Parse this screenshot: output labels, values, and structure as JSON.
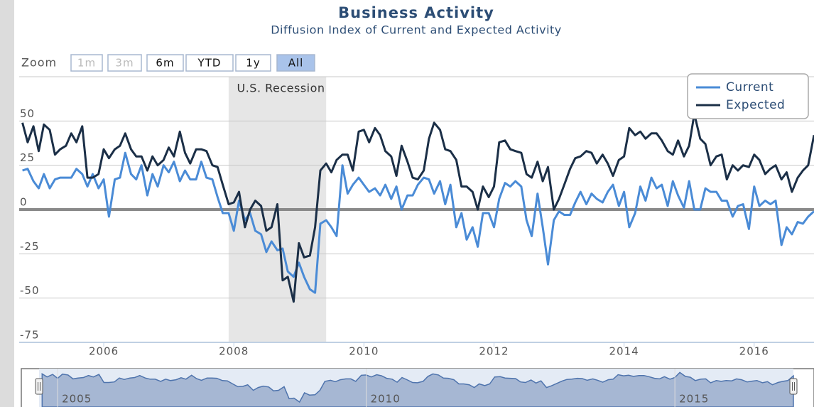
{
  "chart_data": {
    "type": "line",
    "title": "Business Activity",
    "subtitle": "Diffusion Index of Current and Expected Activity",
    "zoom_label": "Zoom",
    "zoom_buttons": [
      "1m",
      "3m",
      "6m",
      "YTD",
      "1y",
      "All"
    ],
    "zoom_disabled": [
      "1m",
      "3m"
    ],
    "zoom_selected": "All",
    "recession": {
      "label": "U.S. Recession",
      "xrange": [
        2007.92,
        2009.42
      ]
    },
    "legend": "top-right",
    "grid": true,
    "xlim": [
      2004.7,
      2016.92
    ],
    "xticks": [
      2006,
      2008,
      2010,
      2012,
      2014,
      2016
    ],
    "ylim": [
      -75,
      75
    ],
    "yticks": [
      -75,
      -50,
      -25,
      0,
      25,
      50
    ],
    "navigator_xticks": [
      2005,
      2010,
      2015
    ],
    "x": [
      2004.75,
      2004.83,
      2004.92,
      2005.0,
      2005.08,
      2005.17,
      2005.25,
      2005.33,
      2005.42,
      2005.5,
      2005.58,
      2005.67,
      2005.75,
      2005.83,
      2005.92,
      2006.0,
      2006.08,
      2006.17,
      2006.25,
      2006.33,
      2006.42,
      2006.5,
      2006.58,
      2006.67,
      2006.75,
      2006.83,
      2006.92,
      2007.0,
      2007.08,
      2007.17,
      2007.25,
      2007.33,
      2007.42,
      2007.5,
      2007.58,
      2007.67,
      2007.75,
      2007.83,
      2007.92,
      2008.0,
      2008.08,
      2008.17,
      2008.25,
      2008.33,
      2008.42,
      2008.5,
      2008.58,
      2008.67,
      2008.75,
      2008.83,
      2008.92,
      2009.0,
      2009.08,
      2009.17,
      2009.25,
      2009.33,
      2009.42,
      2009.5,
      2009.58,
      2009.67,
      2009.75,
      2009.83,
      2009.92,
      2010.0,
      2010.08,
      2010.17,
      2010.25,
      2010.33,
      2010.42,
      2010.5,
      2010.58,
      2010.67,
      2010.75,
      2010.83,
      2010.92,
      2011.0,
      2011.08,
      2011.17,
      2011.25,
      2011.33,
      2011.42,
      2011.5,
      2011.58,
      2011.67,
      2011.75,
      2011.83,
      2011.92,
      2012.0,
      2012.08,
      2012.17,
      2012.25,
      2012.33,
      2012.42,
      2012.5,
      2012.58,
      2012.67,
      2012.75,
      2012.83,
      2012.92,
      2013.0,
      2013.08,
      2013.17,
      2013.25,
      2013.33,
      2013.42,
      2013.5,
      2013.58,
      2013.67,
      2013.75,
      2013.83,
      2013.92,
      2014.0,
      2014.08,
      2014.17,
      2014.25,
      2014.33,
      2014.42,
      2014.5,
      2014.58,
      2014.67,
      2014.75,
      2014.83,
      2014.92,
      2015.0,
      2015.08,
      2015.17,
      2015.25,
      2015.33,
      2015.42,
      2015.5,
      2015.58,
      2015.67,
      2015.75,
      2015.83,
      2015.92,
      2016.0,
      2016.08,
      2016.17,
      2016.25,
      2016.33,
      2016.42,
      2016.5,
      2016.58,
      2016.67,
      2016.75,
      2016.83,
      2016.92
    ],
    "series": [
      {
        "name": "Current",
        "color": "#4a8bd6",
        "values": [
          22,
          23,
          16,
          12,
          20,
          12,
          17,
          18,
          18,
          18,
          23,
          20,
          13,
          20,
          12,
          17,
          -4,
          17,
          18,
          32,
          20,
          17,
          25,
          8,
          20,
          13,
          25,
          21,
          27,
          16,
          22,
          17,
          17,
          27,
          18,
          17,
          7,
          -2,
          -2,
          -12,
          5,
          -6,
          -2,
          -12,
          -14,
          -24,
          -18,
          -23,
          -22,
          -35,
          -38,
          -30,
          -38,
          -45,
          -47,
          -8,
          -6,
          -10,
          -15,
          25,
          9,
          14,
          18,
          14,
          10,
          12,
          8,
          14,
          6,
          13,
          0,
          8,
          8,
          14,
          18,
          17,
          9,
          16,
          3,
          14,
          -10,
          -2,
          -17,
          -10,
          -21,
          -2,
          -2,
          -10,
          6,
          15,
          13,
          16,
          13,
          -6,
          -15,
          9,
          -10,
          -31,
          -6,
          -1,
          -3,
          -3,
          4,
          10,
          3,
          9,
          6,
          4,
          10,
          14,
          2,
          10,
          -10,
          -2,
          13,
          5,
          18,
          12,
          14,
          2,
          16,
          8,
          1,
          16,
          0,
          0,
          12,
          10,
          10,
          5,
          5,
          -4,
          2,
          3,
          -11,
          13,
          2,
          5,
          3,
          5,
          -20,
          -10,
          -14,
          -7,
          -8,
          -4,
          -1
        ]
      },
      {
        "name": "Expected",
        "color": "#1b2f47",
        "values": [
          49,
          38,
          47,
          33,
          48,
          45,
          31,
          34,
          36,
          43,
          38,
          47,
          18,
          18,
          20,
          34,
          29,
          34,
          36,
          43,
          34,
          30,
          30,
          22,
          30,
          25,
          28,
          35,
          30,
          44,
          32,
          26,
          34,
          34,
          33,
          25,
          24,
          14,
          3,
          4,
          10,
          -10,
          0,
          5,
          2,
          -12,
          -10,
          3,
          -40,
          -38,
          -52,
          -19,
          -27,
          -26,
          -10,
          22,
          26,
          21,
          28,
          31,
          31,
          22,
          44,
          45,
          38,
          46,
          42,
          33,
          30,
          19,
          36,
          27,
          18,
          17,
          22,
          40,
          49,
          45,
          34,
          33,
          28,
          13,
          13,
          10,
          0,
          13,
          7,
          13,
          38,
          39,
          34,
          33,
          32,
          20,
          18,
          27,
          16,
          24,
          0,
          6,
          14,
          23,
          29,
          30,
          33,
          32,
          26,
          31,
          26,
          19,
          28,
          30,
          46,
          42,
          44,
          40,
          43,
          43,
          39,
          33,
          31,
          39,
          30,
          36,
          54,
          40,
          37,
          25,
          30,
          31,
          17,
          25,
          22,
          25,
          24,
          31,
          28,
          20,
          23,
          25,
          17,
          21,
          10,
          18,
          22,
          25,
          42
        ]
      }
    ]
  }
}
